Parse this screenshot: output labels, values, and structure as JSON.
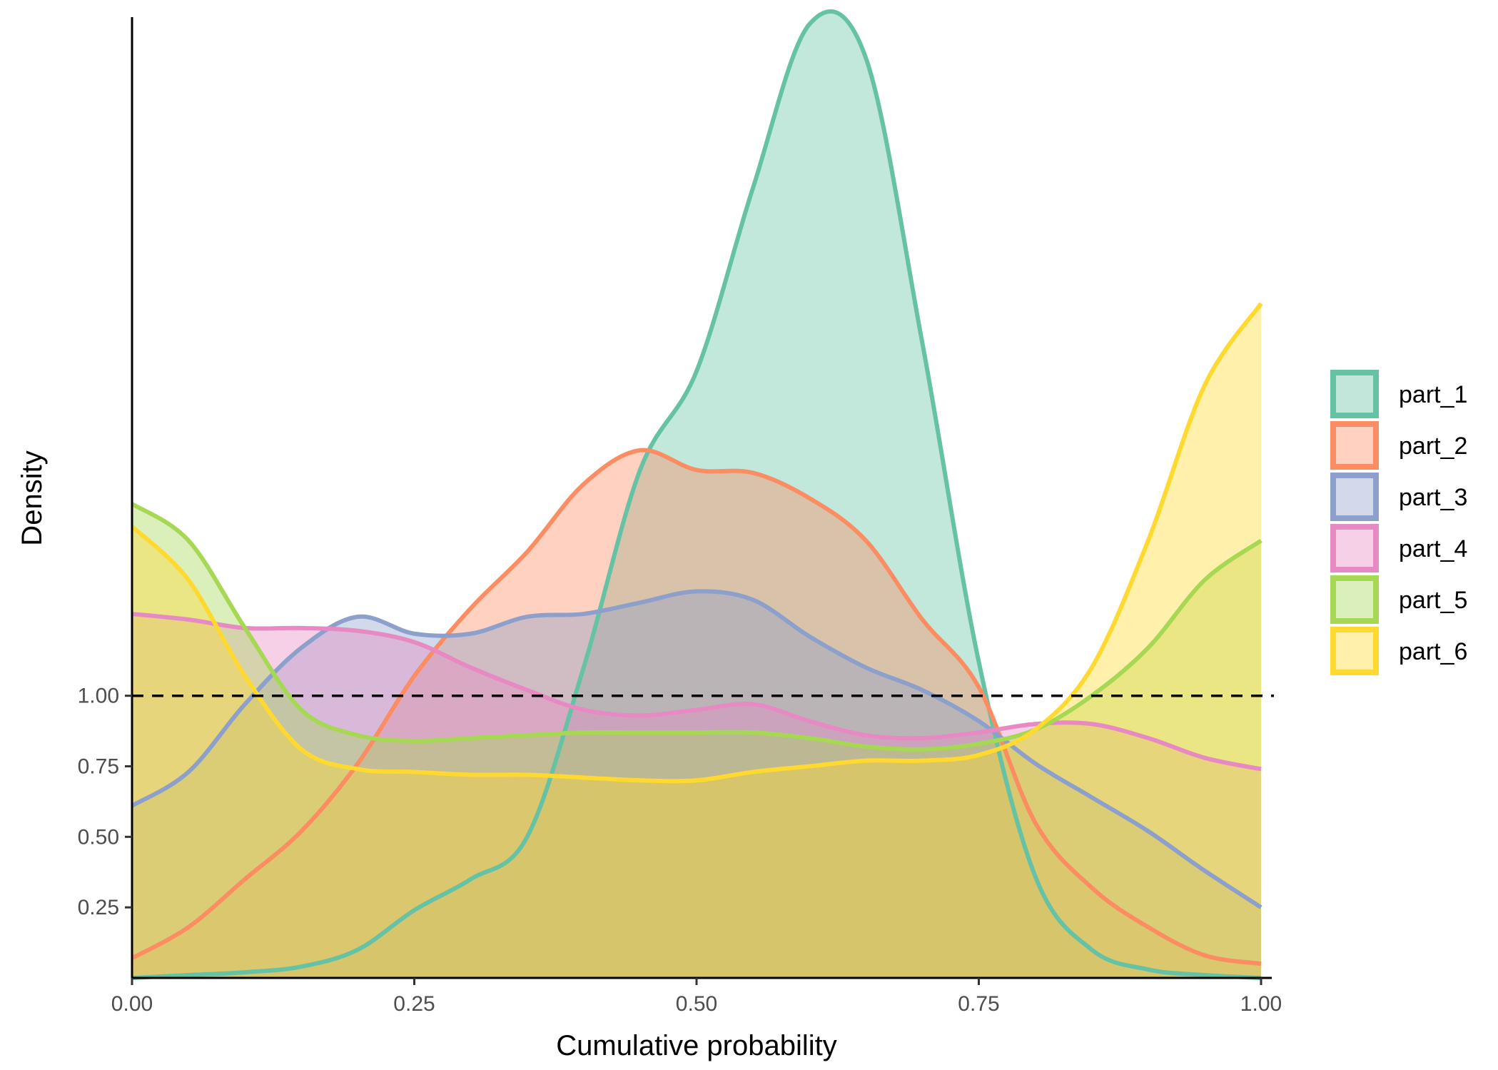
{
  "chart_data": {
    "type": "area",
    "title": "",
    "xlabel": "Cumulative probability",
    "ylabel": "Density",
    "xlim": [
      0,
      1
    ],
    "ylim": [
      0,
      3.4
    ],
    "x_ticks": [
      "0.00",
      "0.25",
      "0.50",
      "0.75",
      "1.00"
    ],
    "y_ticks": [
      "0.25",
      "0.50",
      "0.75",
      "1.00"
    ],
    "grid": false,
    "legend_position": "right",
    "reference_line": {
      "y": 1.0,
      "style": "dashed",
      "color": "#000000"
    },
    "x": [
      0,
      0.05,
      0.1,
      0.15,
      0.2,
      0.25,
      0.3,
      0.35,
      0.4,
      0.45,
      0.5,
      0.55,
      0.6,
      0.65,
      0.7,
      0.75,
      0.8,
      0.85,
      0.9,
      0.95,
      1.0
    ],
    "series": [
      {
        "name": "part_1",
        "color": "#66c2a5",
        "fill": "#c2e7da",
        "values": [
          0,
          0.01,
          0.02,
          0.04,
          0.1,
          0.24,
          0.35,
          0.5,
          1.1,
          1.8,
          2.15,
          2.8,
          3.38,
          3.26,
          2.25,
          1.12,
          0.36,
          0.1,
          0.03,
          0.01,
          0
        ]
      },
      {
        "name": "part_2",
        "color": "#fc8d62",
        "fill": "#fed1c0",
        "values": [
          0.07,
          0.18,
          0.35,
          0.52,
          0.76,
          1.07,
          1.31,
          1.51,
          1.75,
          1.87,
          1.8,
          1.79,
          1.7,
          1.55,
          1.27,
          1.03,
          0.55,
          0.32,
          0.18,
          0.08,
          0.05
        ]
      },
      {
        "name": "part_3",
        "color": "#8da0cb",
        "fill": "#d1d9ea",
        "values": [
          0.61,
          0.73,
          0.97,
          1.17,
          1.28,
          1.22,
          1.22,
          1.28,
          1.29,
          1.33,
          1.37,
          1.34,
          1.21,
          1.1,
          1.02,
          0.91,
          0.76,
          0.64,
          0.52,
          0.38,
          0.25
        ]
      },
      {
        "name": "part_4",
        "color": "#e78ac3",
        "fill": "#f5d0e7",
        "values": [
          1.29,
          1.27,
          1.24,
          1.24,
          1.23,
          1.19,
          1.1,
          1.02,
          0.95,
          0.93,
          0.95,
          0.97,
          0.91,
          0.86,
          0.85,
          0.87,
          0.9,
          0.9,
          0.85,
          0.78,
          0.74
        ]
      },
      {
        "name": "part_5",
        "color": "#a6d854",
        "fill": "#dbefbb",
        "values": [
          1.68,
          1.55,
          1.24,
          0.95,
          0.86,
          0.84,
          0.85,
          0.86,
          0.87,
          0.87,
          0.87,
          0.87,
          0.85,
          0.82,
          0.81,
          0.83,
          0.88,
          1.0,
          1.17,
          1.41,
          1.55
        ]
      },
      {
        "name": "part_6",
        "color": "#ffd92f",
        "fill": "#fff0ab",
        "values": [
          1.6,
          1.41,
          1.07,
          0.81,
          0.74,
          0.73,
          0.72,
          0.72,
          0.71,
          0.7,
          0.7,
          0.73,
          0.75,
          0.77,
          0.77,
          0.79,
          0.88,
          1.1,
          1.55,
          2.1,
          2.39
        ]
      }
    ]
  }
}
